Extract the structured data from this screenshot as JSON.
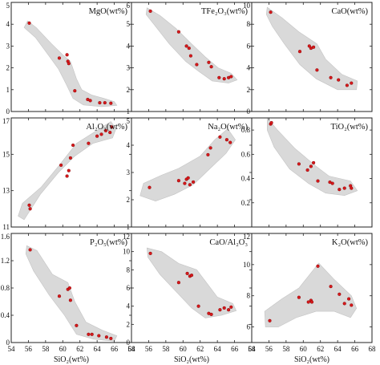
{
  "point_color": "#d7191c",
  "envelope_color": "#d9d9d9",
  "chart_data": [
    {
      "type": "scatter",
      "title": "MgO(wt%)",
      "xlim": [
        54,
        68
      ],
      "ylim": [
        0,
        5
      ],
      "yticks": [
        0,
        1,
        2,
        3,
        4,
        5
      ],
      "x": [
        56.1,
        59.6,
        60.5,
        60.6,
        60.7,
        61.4,
        62.9,
        63.2,
        64.3,
        64.9,
        65.6
      ],
      "y": [
        4.05,
        2.45,
        2.6,
        2.3,
        2.2,
        0.95,
        0.55,
        0.5,
        0.4,
        0.4,
        0.38
      ],
      "envelope": [
        [
          55.9,
          4.15
        ],
        [
          56.9,
          3.85
        ],
        [
          58.7,
          3.1
        ],
        [
          60.0,
          2.6
        ],
        [
          60.9,
          2.3
        ],
        [
          61.6,
          1.5
        ],
        [
          62.2,
          1.0
        ],
        [
          63.4,
          0.75
        ],
        [
          64.8,
          0.6
        ],
        [
          66.0,
          0.45
        ],
        [
          66.3,
          0.28
        ],
        [
          64.5,
          0.22
        ],
        [
          62.4,
          0.3
        ],
        [
          61.2,
          0.6
        ],
        [
          60.4,
          1.25
        ],
        [
          59.5,
          1.95
        ],
        [
          58.3,
          2.6
        ],
        [
          56.8,
          3.4
        ],
        [
          55.5,
          3.85
        ]
      ]
    },
    {
      "type": "scatter",
      "title": "TFe₂O₃(wt%)",
      "xlim": [
        54,
        68
      ],
      "ylim": [
        1,
        6
      ],
      "yticks": [
        1,
        2,
        3,
        4,
        5,
        6
      ],
      "x": [
        56.2,
        59.5,
        60.4,
        60.7,
        60.9,
        61.6,
        63.0,
        63.3,
        64.2,
        64.8,
        65.3,
        65.6
      ],
      "y": [
        5.6,
        4.65,
        4.0,
        3.9,
        3.55,
        3.15,
        3.25,
        3.05,
        2.55,
        2.5,
        2.55,
        2.6
      ],
      "envelope": [
        [
          55.8,
          5.75
        ],
        [
          57.3,
          5.4
        ],
        [
          59.2,
          4.8
        ],
        [
          61.0,
          4.1
        ],
        [
          62.6,
          3.5
        ],
        [
          64.1,
          3.0
        ],
        [
          65.6,
          2.75
        ],
        [
          66.3,
          2.45
        ],
        [
          65.3,
          2.3
        ],
        [
          63.4,
          2.4
        ],
        [
          61.8,
          2.85
        ],
        [
          60.3,
          3.3
        ],
        [
          58.4,
          4.1
        ],
        [
          56.6,
          5.0
        ],
        [
          55.7,
          5.45
        ]
      ]
    },
    {
      "type": "scatter",
      "title": "CaO(wt%)",
      "xlim": [
        54,
        68
      ],
      "ylim": [
        0,
        10
      ],
      "yticks": [
        0,
        2,
        4,
        6,
        8,
        10
      ],
      "x": [
        56.2,
        59.6,
        60.7,
        60.9,
        61.2,
        61.6,
        63.2,
        64.1,
        65.1,
        65.6
      ],
      "y": [
        9.1,
        5.5,
        6.0,
        5.8,
        5.9,
        3.8,
        3.1,
        2.9,
        2.4,
        2.6
      ],
      "envelope": [
        [
          55.8,
          9.55
        ],
        [
          57.5,
          8.6
        ],
        [
          59.5,
          7.3
        ],
        [
          61.6,
          6.2
        ],
        [
          62.6,
          4.8
        ],
        [
          64.5,
          3.4
        ],
        [
          66.3,
          2.8
        ],
        [
          66.2,
          2.0
        ],
        [
          64.0,
          2.0
        ],
        [
          61.5,
          3.0
        ],
        [
          59.6,
          4.3
        ],
        [
          57.8,
          6.2
        ],
        [
          56.4,
          7.8
        ],
        [
          55.7,
          8.9
        ]
      ]
    },
    {
      "type": "scatter",
      "title": "Al₂O₃(wt%)",
      "xlim": [
        54,
        68
      ],
      "ylim": [
        11,
        17
      ],
      "yticks": [
        11,
        13,
        15,
        17
      ],
      "x": [
        56.1,
        56.2,
        59.8,
        60.5,
        60.7,
        60.9,
        61.2,
        63.0,
        64.0,
        64.5,
        65.0,
        65.5,
        65.7
      ],
      "y": [
        12.2,
        12.0,
        14.4,
        13.8,
        14.1,
        14.8,
        15.5,
        15.6,
        16.0,
        16.1,
        16.3,
        16.2,
        16.5
      ],
      "envelope": [
        [
          54.8,
          11.6
        ],
        [
          55.3,
          12.3
        ],
        [
          57.5,
          13.2
        ],
        [
          59.6,
          14.4
        ],
        [
          61.6,
          15.6
        ],
        [
          63.6,
          16.2
        ],
        [
          65.6,
          16.8
        ],
        [
          66.2,
          16.4
        ],
        [
          65.8,
          15.9
        ],
        [
          63.5,
          15.6
        ],
        [
          61.4,
          14.9
        ],
        [
          59.5,
          14.0
        ],
        [
          57.4,
          12.8
        ],
        [
          55.5,
          11.4
        ]
      ]
    },
    {
      "type": "scatter",
      "title": "Na₂O(wt%)",
      "xlim": [
        54,
        68
      ],
      "ylim": [
        1,
        5
      ],
      "yticks": [
        1,
        2,
        3,
        4,
        5
      ],
      "x": [
        56.1,
        59.5,
        60.2,
        60.4,
        60.6,
        60.8,
        61.2,
        62.9,
        63.2,
        64.3,
        65.1,
        65.5
      ],
      "y": [
        2.45,
        2.7,
        2.6,
        2.75,
        2.8,
        2.55,
        2.65,
        3.65,
        3.9,
        4.3,
        4.2,
        4.1
      ],
      "envelope": [
        [
          55.0,
          2.15
        ],
        [
          55.4,
          2.6
        ],
        [
          57.5,
          2.9
        ],
        [
          59.5,
          3.15
        ],
        [
          62.0,
          3.6
        ],
        [
          63.7,
          4.2
        ],
        [
          65.2,
          4.6
        ],
        [
          66.1,
          4.2
        ],
        [
          65.0,
          3.7
        ],
        [
          63.0,
          3.1
        ],
        [
          61.2,
          2.55
        ],
        [
          59.0,
          2.2
        ],
        [
          56.8,
          1.95
        ]
      ]
    },
    {
      "type": "scatter",
      "title": "TiO₂(wt%)",
      "xlim": [
        54,
        68
      ],
      "ylim": [
        0,
        0.9
      ],
      "yticks": [
        0.2,
        0.4,
        0.6,
        0.8
      ],
      "x": [
        56.2,
        56.3,
        59.5,
        60.5,
        60.9,
        61.2,
        61.7,
        63.1,
        63.4,
        64.2,
        64.8,
        65.5,
        65.6
      ],
      "y": [
        0.85,
        0.86,
        0.52,
        0.47,
        0.5,
        0.53,
        0.38,
        0.37,
        0.36,
        0.31,
        0.32,
        0.34,
        0.32
      ],
      "envelope": [
        [
          55.8,
          0.9
        ],
        [
          57.0,
          0.8
        ],
        [
          59.0,
          0.65
        ],
        [
          61.5,
          0.5
        ],
        [
          63.0,
          0.42
        ],
        [
          65.5,
          0.38
        ],
        [
          66.3,
          0.3
        ],
        [
          64.8,
          0.26
        ],
        [
          62.6,
          0.28
        ],
        [
          60.6,
          0.36
        ],
        [
          58.4,
          0.48
        ],
        [
          56.6,
          0.66
        ],
        [
          55.8,
          0.8
        ]
      ]
    },
    {
      "type": "scatter",
      "title": "P₂O₅(wt%)",
      "xlim": [
        54,
        68
      ],
      "ylim": [
        0,
        1.6
      ],
      "yticks": [
        0,
        0.4,
        0.8,
        1.2,
        1.6
      ],
      "x": [
        56.2,
        59.6,
        60.6,
        60.8,
        60.9,
        61.6,
        63.0,
        63.4,
        64.2,
        65.1,
        65.6
      ],
      "y": [
        1.36,
        0.68,
        0.78,
        0.8,
        0.62,
        0.25,
        0.12,
        0.12,
        0.1,
        0.08,
        0.06
      ],
      "envelope": [
        [
          55.8,
          1.42
        ],
        [
          57.0,
          1.35
        ],
        [
          58.8,
          1.0
        ],
        [
          60.6,
          0.88
        ],
        [
          61.4,
          0.6
        ],
        [
          62.7,
          0.3
        ],
        [
          64.6,
          0.18
        ],
        [
          66.3,
          0.1
        ],
        [
          66.0,
          0.02
        ],
        [
          63.6,
          0.05
        ],
        [
          61.6,
          0.12
        ],
        [
          60.2,
          0.4
        ],
        [
          58.4,
          0.7
        ],
        [
          56.6,
          1.05
        ],
        [
          55.7,
          1.3
        ]
      ]
    },
    {
      "type": "scatter",
      "title": "CaO/Al₂O₃",
      "xlim": [
        54,
        68
      ],
      "ylim": [
        0,
        12
      ],
      "yticks": [
        0,
        2,
        4,
        6,
        8,
        10,
        12
      ],
      "x": [
        56.2,
        59.5,
        60.5,
        60.8,
        61.0,
        61.8,
        63.0,
        63.3,
        64.3,
        64.8,
        65.3,
        65.6
      ],
      "y": [
        9.8,
        6.6,
        7.6,
        7.3,
        7.4,
        4.0,
        3.2,
        3.1,
        3.6,
        3.8,
        3.6,
        3.9
      ],
      "envelope": [
        [
          55.8,
          10.4
        ],
        [
          57.5,
          10.0
        ],
        [
          59.5,
          8.7
        ],
        [
          61.6,
          8.0
        ],
        [
          62.8,
          6.5
        ],
        [
          64.0,
          5.0
        ],
        [
          65.8,
          4.3
        ],
        [
          66.2,
          3.5
        ],
        [
          64.5,
          3.0
        ],
        [
          62.6,
          2.7
        ],
        [
          61.0,
          3.8
        ],
        [
          59.0,
          5.8
        ],
        [
          57.3,
          7.5
        ],
        [
          55.9,
          9.4
        ]
      ]
    },
    {
      "type": "scatter",
      "title": "K₂O(wt%)",
      "xlim": [
        54,
        68
      ],
      "ylim": [
        5,
        12
      ],
      "yticks": [
        6,
        8,
        10,
        12
      ],
      "x": [
        56.1,
        59.5,
        60.6,
        60.9,
        61.0,
        61.7,
        63.2,
        64.2,
        64.8,
        65.3,
        65.6
      ],
      "y": [
        6.4,
        7.9,
        7.6,
        7.7,
        7.6,
        9.9,
        8.6,
        8.1,
        7.5,
        7.8,
        7.4
      ],
      "envelope": [
        [
          55.6,
          6.0
        ],
        [
          55.5,
          7.0
        ],
        [
          57.5,
          7.8
        ],
        [
          59.5,
          8.5
        ],
        [
          61.8,
          10.1
        ],
        [
          63.5,
          9.1
        ],
        [
          65.6,
          8.0
        ],
        [
          66.2,
          7.2
        ],
        [
          65.5,
          6.6
        ],
        [
          63.6,
          7.0
        ],
        [
          61.5,
          7.0
        ],
        [
          59.2,
          6.6
        ],
        [
          57.1,
          6.0
        ]
      ]
    }
  ],
  "x_axis": {
    "title": "SiO₂(wt%)",
    "ticks": [
      54,
      56,
      58,
      60,
      62,
      64,
      66,
      68
    ]
  }
}
